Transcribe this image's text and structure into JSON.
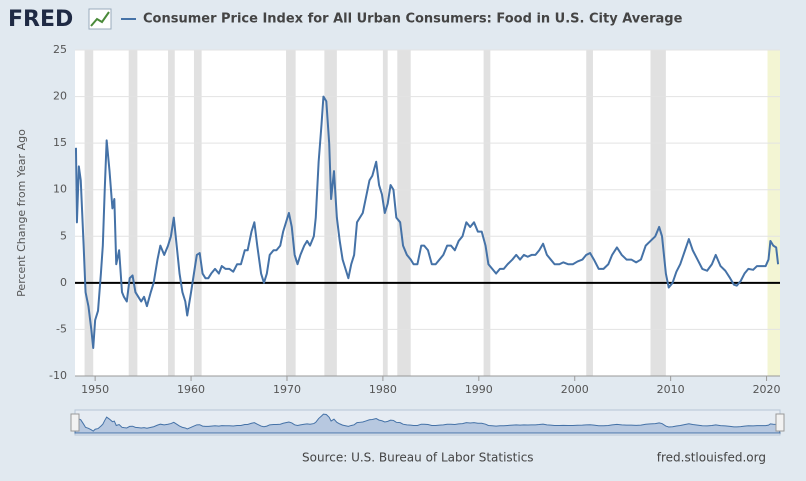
{
  "logo": "FRED",
  "source": "Source: U.S. Bureau of Labor Statistics",
  "site": "fred.stlouisfed.org",
  "chart_data": {
    "type": "line",
    "y_label": "Percent Change from Year Ago",
    "xlim": [
      1947.9,
      2021.4
    ],
    "ylim": [
      -10,
      25
    ],
    "xticks": [
      1950,
      1960,
      1970,
      1980,
      1990,
      2000,
      2010,
      2020
    ],
    "yticks": [
      -10,
      -5,
      0,
      5,
      10,
      15,
      20,
      25
    ],
    "grid": true,
    "recessions": [
      [
        1948.9,
        1949.8
      ],
      [
        1953.5,
        1954.4
      ],
      [
        1957.6,
        1958.3
      ],
      [
        1960.3,
        1961.1
      ],
      [
        1969.9,
        1970.9
      ],
      [
        1973.9,
        1975.2
      ],
      [
        1980.0,
        1980.5
      ],
      [
        1981.5,
        1982.9
      ],
      [
        1990.5,
        1991.2
      ],
      [
        2001.2,
        2001.9
      ],
      [
        2007.9,
        2009.5
      ]
    ],
    "highlight": [
      2020.1,
      2021.4
    ],
    "x": [
      1948.0,
      1948.1,
      1948.3,
      1948.5,
      1948.8,
      1949.0,
      1949.3,
      1949.6,
      1949.8,
      1950.0,
      1950.3,
      1950.6,
      1950.8,
      1951.0,
      1951.2,
      1951.5,
      1951.8,
      1952.0,
      1952.2,
      1952.5,
      1952.8,
      1953.0,
      1953.3,
      1953.6,
      1953.9,
      1954.2,
      1954.5,
      1954.8,
      1955.1,
      1955.4,
      1955.8,
      1956.1,
      1956.5,
      1956.8,
      1957.2,
      1957.6,
      1957.9,
      1958.2,
      1958.5,
      1958.8,
      1959.1,
      1959.4,
      1959.6,
      1960.0,
      1960.3,
      1960.6,
      1960.9,
      1961.2,
      1961.5,
      1961.8,
      1962.1,
      1962.5,
      1962.9,
      1963.2,
      1963.6,
      1964.0,
      1964.4,
      1964.8,
      1965.2,
      1965.6,
      1965.9,
      1966.3,
      1966.6,
      1966.9,
      1967.3,
      1967.6,
      1967.9,
      1968.2,
      1968.6,
      1968.9,
      1969.3,
      1969.6,
      1969.9,
      1970.2,
      1970.5,
      1970.8,
      1971.1,
      1971.4,
      1971.8,
      1972.1,
      1972.4,
      1972.8,
      1973.0,
      1973.3,
      1973.6,
      1973.8,
      1974.1,
      1974.4,
      1974.6,
      1974.9,
      1975.2,
      1975.5,
      1975.8,
      1976.1,
      1976.4,
      1976.7,
      1977.0,
      1977.3,
      1977.6,
      1977.9,
      1978.2,
      1978.6,
      1978.9,
      1979.3,
      1979.6,
      1979.9,
      1980.2,
      1980.5,
      1980.8,
      1981.1,
      1981.4,
      1981.8,
      1982.1,
      1982.5,
      1982.9,
      1983.2,
      1983.6,
      1984.0,
      1984.3,
      1984.7,
      1985.1,
      1985.5,
      1985.9,
      1986.3,
      1986.7,
      1987.1,
      1987.5,
      1987.9,
      1988.3,
      1988.7,
      1989.1,
      1989.5,
      1989.9,
      1990.3,
      1990.7,
      1991.0,
      1991.4,
      1991.8,
      1992.2,
      1992.6,
      1993.0,
      1993.5,
      1993.9,
      1994.3,
      1994.7,
      1995.1,
      1995.5,
      1995.9,
      1996.3,
      1996.7,
      1997.1,
      1997.5,
      1997.9,
      1998.4,
      1998.8,
      1999.3,
      1999.8,
      2000.3,
      2000.8,
      2001.2,
      2001.6,
      2002.0,
      2002.5,
      2003.0,
      2003.5,
      2003.9,
      2004.4,
      2004.9,
      2005.4,
      2005.9,
      2006.4,
      2006.9,
      2007.4,
      2007.9,
      2008.4,
      2008.8,
      2009.1,
      2009.5,
      2009.8,
      2010.2,
      2010.6,
      2011.0,
      2011.5,
      2011.9,
      2012.3,
      2012.8,
      2013.3,
      2013.8,
      2014.3,
      2014.7,
      2015.2,
      2015.7,
      2016.2,
      2016.6,
      2016.9,
      2017.3,
      2017.7,
      2018.1,
      2018.6,
      2019.0,
      2019.5,
      2019.9,
      2020.2,
      2020.4,
      2020.7,
      2021.0,
      2021.2
    ],
    "series": [
      {
        "name": "Consumer Price Index for All Urban Consumers: Food in U.S. City Average",
        "color": "#4572a7",
        "values": [
          14.5,
          6.5,
          12.5,
          11,
          4,
          -1,
          -2.5,
          -5,
          -7,
          -4,
          -3,
          1,
          4,
          10,
          15.3,
          12,
          8,
          9,
          2,
          3.5,
          -1,
          -1.5,
          -2,
          0.5,
          0.8,
          -1,
          -1.5,
          -2,
          -1.5,
          -2.5,
          -1,
          0,
          2.5,
          4,
          3,
          4,
          5,
          7,
          4,
          1,
          -1,
          -2,
          -3.5,
          -1,
          1,
          3,
          3.2,
          1,
          0.5,
          0.5,
          1,
          1.5,
          1,
          1.8,
          1.5,
          1.5,
          1.2,
          2,
          2,
          3.5,
          3.5,
          5.5,
          6.5,
          4,
          1,
          0,
          1,
          3,
          3.5,
          3.5,
          4,
          5.5,
          6.5,
          7.5,
          6,
          3,
          2,
          3,
          4,
          4.5,
          4,
          5,
          7,
          13,
          17,
          20,
          19.5,
          15,
          9,
          12,
          7,
          4.5,
          2.5,
          1.5,
          0.5,
          2,
          3,
          6.5,
          7,
          7.5,
          9,
          11,
          11.5,
          13,
          10.5,
          9.5,
          7.5,
          8.5,
          10.5,
          10,
          7,
          6.5,
          4,
          3,
          2.5,
          2,
          2,
          4,
          4,
          3.5,
          2,
          2,
          2.5,
          3,
          4,
          4,
          3.5,
          4.5,
          5,
          6.5,
          6,
          6.5,
          5.5,
          5.5,
          4,
          2,
          1.5,
          1,
          1.5,
          1.5,
          2,
          2.5,
          3,
          2.5,
          3,
          2.8,
          3,
          3,
          3.5,
          4.2,
          3,
          2.5,
          2,
          2,
          2.2,
          2,
          2,
          2.3,
          2.5,
          3,
          3.2,
          2.5,
          1.5,
          1.5,
          2,
          3,
          3.8,
          3,
          2.5,
          2.5,
          2.2,
          2.5,
          4,
          4.5,
          5,
          6,
          5,
          1,
          -0.5,
          0,
          1.2,
          2,
          3.5,
          4.7,
          3.5,
          2.5,
          1.5,
          1.3,
          2,
          3,
          1.8,
          1.3,
          0.5,
          -0.2,
          -0.3,
          0.2,
          1,
          1.5,
          1.4,
          1.8,
          1.8,
          1.8,
          2.5,
          4.5,
          4,
          3.8,
          2
        ]
      }
    ]
  }
}
